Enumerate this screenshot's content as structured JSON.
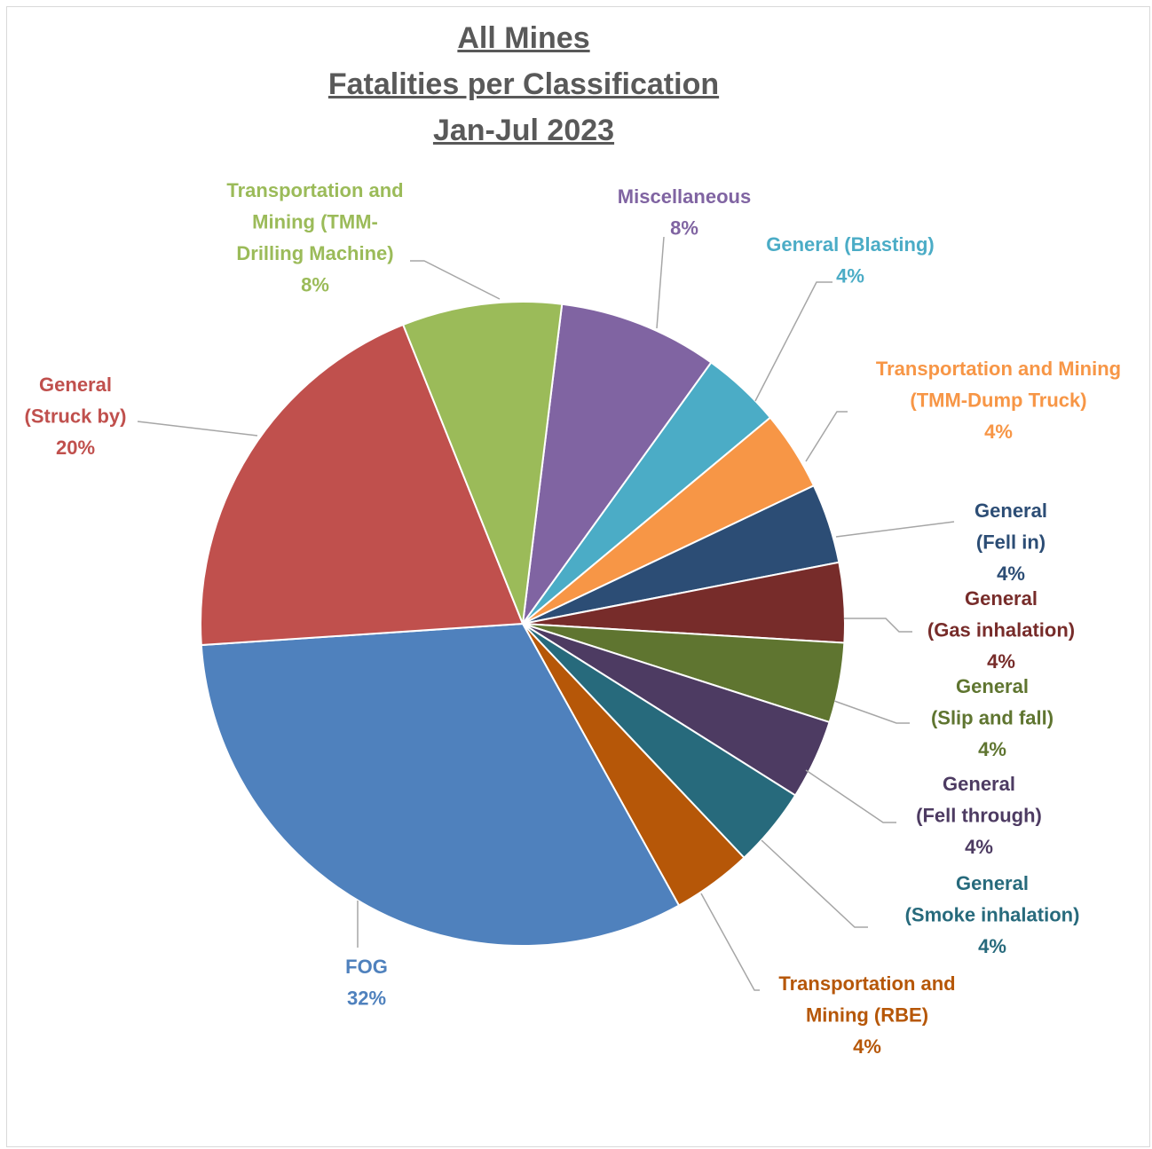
{
  "chart_data": {
    "type": "pie",
    "title_lines": [
      "All Mines",
      "Fatalities per Classification",
      "Jan-Jul 2023"
    ],
    "slices": [
      {
        "label_lines": [
          "Miscellaneous"
        ],
        "pct_label": "8%",
        "value": 8,
        "color": "#8064a2"
      },
      {
        "label_lines": [
          "General (Blasting)"
        ],
        "pct_label": "4%",
        "value": 4,
        "color": "#4bacc6"
      },
      {
        "label_lines": [
          "Transportation and Mining",
          "(TMM-Dump Truck)"
        ],
        "pct_label": "4%",
        "value": 4,
        "color": "#f79646"
      },
      {
        "label_lines": [
          "General",
          "(Fell in)"
        ],
        "pct_label": "4%",
        "value": 4,
        "color": "#2c4d75"
      },
      {
        "label_lines": [
          "General",
          "(Gas inhalation)"
        ],
        "pct_label": "4%",
        "value": 4,
        "color": "#772c2a"
      },
      {
        "label_lines": [
          "General",
          "(Slip and fall)"
        ],
        "pct_label": "4%",
        "value": 4,
        "color": "#5f7530"
      },
      {
        "label_lines": [
          "General",
          "(Fell through)"
        ],
        "pct_label": "4%",
        "value": 4,
        "color": "#4d3b62"
      },
      {
        "label_lines": [
          "General",
          "(Smoke inhalation)"
        ],
        "pct_label": "4%",
        "value": 4,
        "color": "#276a7c"
      },
      {
        "label_lines": [
          "Transportation and",
          "Mining (RBE)"
        ],
        "pct_label": "4%",
        "value": 4,
        "color": "#b65708"
      },
      {
        "label_lines": [
          "FOG"
        ],
        "pct_label": "32%",
        "value": 32,
        "color": "#4f81bd"
      },
      {
        "label_lines": [
          "General",
          "(Struck by)"
        ],
        "pct_label": "20%",
        "value": 20,
        "color": "#c0504d"
      },
      {
        "label_lines": [
          "Transportation and",
          "Mining (TMM-",
          "Drilling Machine)"
        ],
        "pct_label": "8%",
        "value": 8,
        "color": "#9bbb59"
      }
    ]
  }
}
